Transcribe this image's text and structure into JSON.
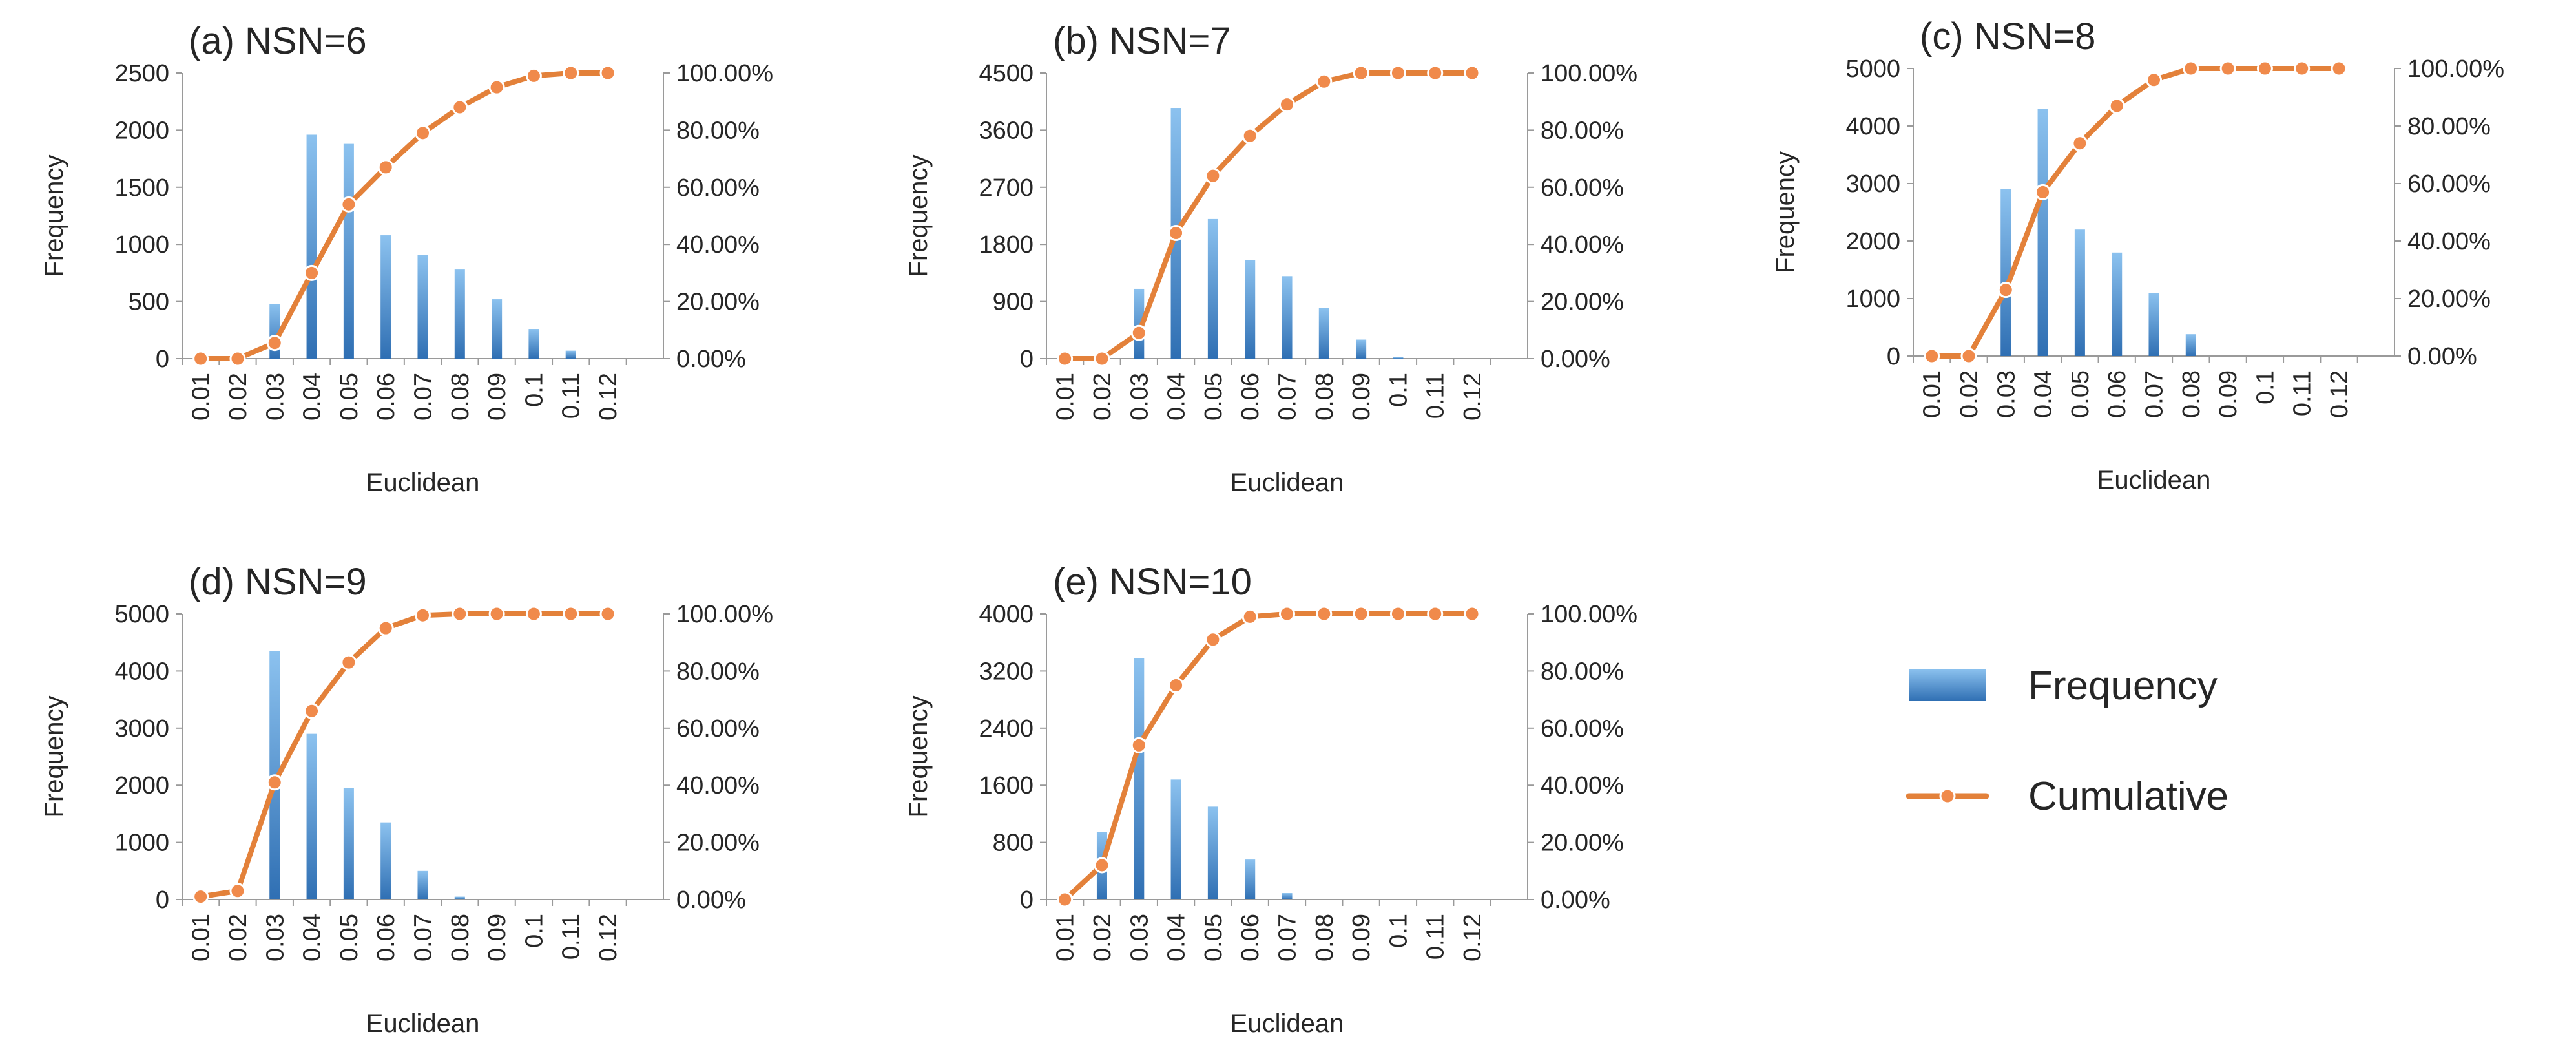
{
  "chart_data": [
    {
      "type": "bar",
      "title": "(a) NSN=6",
      "xlabel": "Euclidean",
      "ylabel": "Frequency",
      "categories": [
        "0.01",
        "0.02",
        "0.03",
        "0.04",
        "0.05",
        "0.06",
        "0.07",
        "0.08",
        "0.09",
        "0.1",
        "0.11",
        "0.12"
      ],
      "series": [
        {
          "name": "Frequency",
          "type": "bar",
          "axis": "left",
          "values": [
            0,
            0,
            480,
            1960,
            1880,
            1080,
            910,
            780,
            520,
            260,
            70,
            0
          ]
        },
        {
          "name": "Cumulative",
          "type": "line",
          "axis": "right",
          "values": [
            0,
            0,
            5.5,
            30,
            54,
            67,
            79,
            88,
            95,
            99,
            100,
            100
          ]
        }
      ],
      "ylim": [
        0,
        2500
      ],
      "yticks": [
        "0",
        "500",
        "1000",
        "1500",
        "2000",
        "2500"
      ],
      "y2lim": [
        0,
        100
      ],
      "y2ticks": [
        "0.00%",
        "20.00%",
        "40.00%",
        "60.00%",
        "80.00%",
        "100.00%"
      ]
    },
    {
      "type": "bar",
      "title": "(b) NSN=7",
      "xlabel": "Euclidean",
      "ylabel": "Frequency",
      "categories": [
        "0.01",
        "0.02",
        "0.03",
        "0.04",
        "0.05",
        "0.06",
        "0.07",
        "0.08",
        "0.09",
        "0.1",
        "0.11",
        "0.12"
      ],
      "series": [
        {
          "name": "Frequency",
          "type": "bar",
          "axis": "left",
          "values": [
            0,
            0,
            1100,
            3950,
            2200,
            1550,
            1300,
            800,
            300,
            20,
            0,
            0
          ]
        },
        {
          "name": "Cumulative",
          "type": "line",
          "axis": "right",
          "values": [
            0,
            0,
            9,
            44,
            64,
            78,
            89,
            97,
            100,
            100,
            100,
            100
          ]
        }
      ],
      "ylim": [
        0,
        4500
      ],
      "yticks": [
        "0",
        "900",
        "1800",
        "2700",
        "3600",
        "4500"
      ],
      "y2lim": [
        0,
        100
      ],
      "y2ticks": [
        "0.00%",
        "20.00%",
        "40.00%",
        "60.00%",
        "80.00%",
        "100.00%"
      ]
    },
    {
      "type": "bar",
      "title": "(c) NSN=8",
      "xlabel": "Euclidean",
      "ylabel": "Frequency",
      "categories": [
        "0.01",
        "0.02",
        "0.03",
        "0.04",
        "0.05",
        "0.06",
        "0.07",
        "0.08",
        "0.09",
        "0.1",
        "0.11",
        "0.12"
      ],
      "series": [
        {
          "name": "Frequency",
          "type": "bar",
          "axis": "left",
          "values": [
            0,
            0,
            2900,
            4300,
            2200,
            1800,
            1100,
            380,
            0,
            0,
            0,
            0
          ]
        },
        {
          "name": "Cumulative",
          "type": "line",
          "axis": "right",
          "values": [
            0,
            0,
            23,
            57,
            74,
            87,
            96,
            100,
            100,
            100,
            100,
            100
          ]
        }
      ],
      "ylim": [
        0,
        5000
      ],
      "yticks": [
        "0",
        "1000",
        "2000",
        "3000",
        "4000",
        "5000"
      ],
      "y2lim": [
        0,
        100
      ],
      "y2ticks": [
        "0.00%",
        "20.00%",
        "40.00%",
        "60.00%",
        "80.00%",
        "100.00%"
      ]
    },
    {
      "type": "bar",
      "title": "(d) NSN=9",
      "xlabel": "Euclidean",
      "ylabel": "Frequency",
      "categories": [
        "0.01",
        "0.02",
        "0.03",
        "0.04",
        "0.05",
        "0.06",
        "0.07",
        "0.08",
        "0.09",
        "0.1",
        "0.11",
        "0.12"
      ],
      "series": [
        {
          "name": "Frequency",
          "type": "bar",
          "axis": "left",
          "values": [
            0,
            0,
            4350,
            2900,
            1950,
            1350,
            500,
            50,
            0,
            0,
            0,
            0
          ]
        },
        {
          "name": "Cumulative",
          "type": "line",
          "axis": "right",
          "values": [
            1,
            3,
            41,
            66,
            83,
            95,
            99.5,
            100,
            100,
            100,
            100,
            100
          ]
        }
      ],
      "ylim": [
        0,
        5000
      ],
      "yticks": [
        "0",
        "1000",
        "2000",
        "3000",
        "4000",
        "5000"
      ],
      "y2lim": [
        0,
        100
      ],
      "y2ticks": [
        "0.00%",
        "20.00%",
        "40.00%",
        "60.00%",
        "80.00%",
        "100.00%"
      ]
    },
    {
      "type": "bar",
      "title": "(e) NSN=10",
      "xlabel": "Euclidean",
      "ylabel": "Frequency",
      "categories": [
        "0.01",
        "0.02",
        "0.03",
        "0.04",
        "0.05",
        "0.06",
        "0.07",
        "0.08",
        "0.09",
        "0.1",
        "0.11",
        "0.12"
      ],
      "series": [
        {
          "name": "Frequency",
          "type": "bar",
          "axis": "left",
          "values": [
            0,
            950,
            3380,
            1680,
            1300,
            560,
            90,
            0,
            0,
            0,
            0,
            0
          ]
        },
        {
          "name": "Cumulative",
          "type": "line",
          "axis": "right",
          "values": [
            0,
            12,
            54,
            75,
            91,
            99,
            100,
            100,
            100,
            100,
            100,
            100
          ]
        }
      ],
      "ylim": [
        0,
        4000
      ],
      "yticks": [
        "0",
        "800",
        "1600",
        "2400",
        "3200",
        "4000"
      ],
      "y2lim": [
        0,
        100
      ],
      "y2ticks": [
        "0.00%",
        "20.00%",
        "40.00%",
        "60.00%",
        "80.00%",
        "100.00%"
      ]
    }
  ],
  "legend": {
    "frequency_label": "Frequency",
    "cumulative_label": "Cumulative"
  },
  "colors": {
    "bar_top": "#8cc2ef",
    "bar_bottom": "#2f6fb3",
    "line": "#e3813a",
    "marker": "#f08a4b",
    "axis": "#9a9a9a",
    "text": "#262626"
  }
}
